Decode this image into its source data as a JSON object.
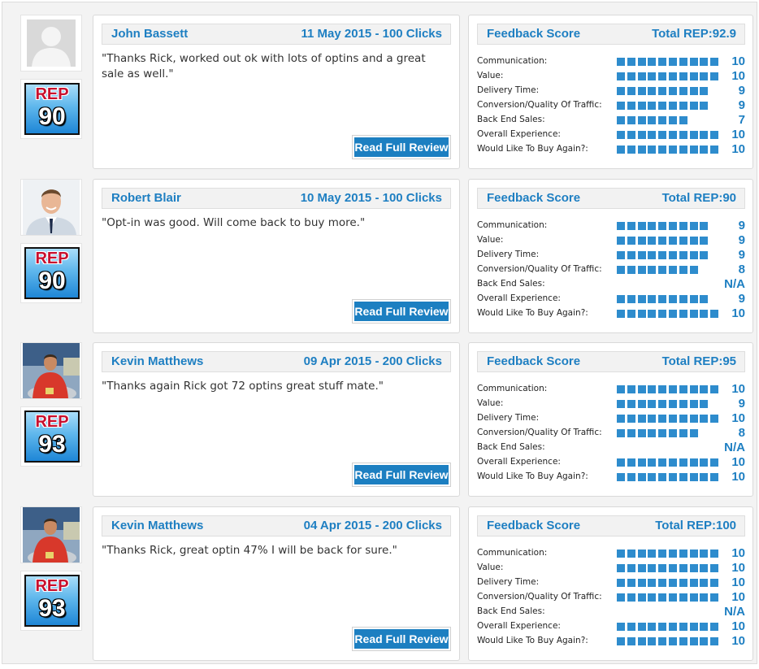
{
  "colors": {
    "accent": "#1e7fc2",
    "bar": "#2e8ccd",
    "rep_label": "#c8102e"
  },
  "rep_label": "REP",
  "read_full_review_label": "Read Full Review",
  "feedback_title": "Feedback Score",
  "metric_labels": [
    "Communication:",
    "Value:",
    "Delivery Time:",
    "Conversion/Quality Of Traffic:",
    "Back End Sales:",
    "Overall Experience:",
    "Would Like To Buy Again?:"
  ],
  "reviews": [
    {
      "avatar": "default-user-icon",
      "name": "John Bassett",
      "date_clicks": "11 May 2015 - 100 Clicks",
      "quote": "\"Thanks Rick, worked out ok with lots of optins and a great sale as well.\"",
      "rep": "90",
      "total_rep": "Total REP:92.9",
      "scores": [
        "10",
        "10",
        "9",
        "9",
        "7",
        "10",
        "10"
      ]
    },
    {
      "avatar": "businessman-photo",
      "name": "Robert Blair",
      "date_clicks": "10 May 2015 - 100 Clicks",
      "quote": "\"Opt-in was good. Will come back to buy more.\"",
      "rep": "90",
      "total_rep": "Total REP:90",
      "scores": [
        "9",
        "9",
        "9",
        "8",
        "N/A",
        "9",
        "10"
      ]
    },
    {
      "avatar": "man-red-shirt-photo",
      "name": "Kevin Matthews",
      "date_clicks": "09 Apr 2015 - 200 Clicks",
      "quote": "\"Thanks again Rick got 72 optins great stuff mate.\"",
      "rep": "93",
      "total_rep": "Total REP:95",
      "scores": [
        "10",
        "9",
        "10",
        "8",
        "N/A",
        "10",
        "10"
      ]
    },
    {
      "avatar": "man-red-shirt-photo",
      "name": "Kevin Matthews",
      "date_clicks": "04 Apr 2015 - 200 Clicks",
      "quote": "\"Thanks Rick, great optin 47% I will be back for sure.\"",
      "rep": "93",
      "total_rep": "Total REP:100",
      "scores": [
        "10",
        "10",
        "10",
        "10",
        "N/A",
        "10",
        "10"
      ]
    }
  ]
}
